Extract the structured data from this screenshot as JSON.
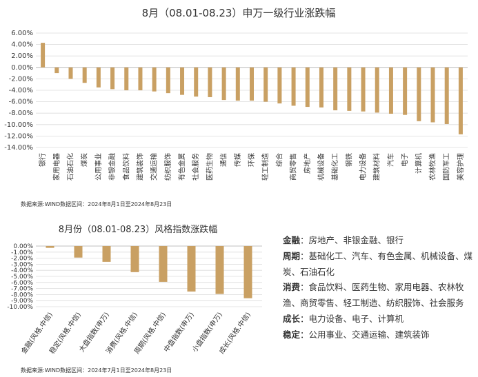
{
  "chart_data": [
    {
      "type": "bar",
      "title": "8月（08.01-08.23）申万一级行业涨跌幅",
      "categories": [
        "银行",
        "家用电器",
        "石油石化",
        "煤炭",
        "公用事业",
        "非银金融",
        "食品饮料",
        "建筑装饰",
        "交通运输",
        "纺织服饰",
        "有色金属",
        "社会服务",
        "医药生物",
        "通信",
        "传媒",
        "环保",
        "轻工制造",
        "综合",
        "商贸零售",
        "房地产",
        "机械设备",
        "基础化工",
        "钢铁",
        "电力设备",
        "建筑材料",
        "汽车",
        "电子",
        "计算机",
        "农林牧渔",
        "国防军工",
        "美容护理"
      ],
      "values": [
        4.3,
        -1.0,
        -2.0,
        -2.7,
        -3.5,
        -3.8,
        -4.0,
        -4.0,
        -4.2,
        -4.5,
        -4.8,
        -5.1,
        -5.2,
        -5.7,
        -5.8,
        -5.8,
        -6.0,
        -6.3,
        -6.7,
        -6.9,
        -7.0,
        -7.5,
        -7.6,
        -7.7,
        -7.9,
        -8.1,
        -8.3,
        -9.4,
        -9.6,
        -9.9,
        -11.7
      ],
      "yticks": [
        "6.00%",
        "4.00%",
        "2.00%",
        "0.00%",
        "-2.00%",
        "-4.00%",
        "-6.00%",
        "-8.00%",
        "-10.00%",
        "-12.00%",
        "-14.00%"
      ],
      "ylim": [
        -14,
        6
      ],
      "color": "#C9A063",
      "grid": true
    },
    {
      "type": "bar",
      "title": "8月份（08.01-08.23）风格指数涨跌幅",
      "categories": [
        "金融(风格.中信)",
        "稳定(风格.中信)",
        "大盘指数(申万)",
        "消费(风格.中信)",
        "周期(风格.中信)",
        "中盘指数(申万)",
        "小盘指数(申万)",
        "成长(风格.中信)"
      ],
      "values": [
        -0.3,
        -1.9,
        -2.6,
        -4.3,
        -5.9,
        -7.5,
        -7.9,
        -8.6
      ],
      "yticks": [
        "0.00%",
        "-1.00%",
        "-2.00%",
        "-3.00%",
        "-4.00%",
        "-5.00%",
        "-6.00%",
        "-7.00%",
        "-8.00%",
        "-9.00%",
        "-10.00%"
      ],
      "ylim": [
        -10,
        0
      ],
      "color": "#C9A063",
      "grid": true
    }
  ],
  "sources": {
    "top": "数据来源:WIND数据区间：2024年8月1日至2024年8月23日",
    "bottom": "数据来源:WIND数据区间：2024年7月1日至2024年8月23日"
  },
  "legend_panel": [
    {
      "key": "金融",
      "text": "：房地产、非银金融、银行"
    },
    {
      "key": "周期",
      "text": "：基础化工、汽车、有色金属、机械设备、煤炭、石油石化"
    },
    {
      "key": "消费",
      "text": "：食品饮料、医药生物、家用电器、农林牧渔、商贸零售、轻工制造、纺织服饰、社会服务"
    },
    {
      "key": "成长",
      "text": "：电力设备、电子、计算机"
    },
    {
      "key": "稳定",
      "text": "：公用事业、交通运输、建筑装饰"
    }
  ]
}
